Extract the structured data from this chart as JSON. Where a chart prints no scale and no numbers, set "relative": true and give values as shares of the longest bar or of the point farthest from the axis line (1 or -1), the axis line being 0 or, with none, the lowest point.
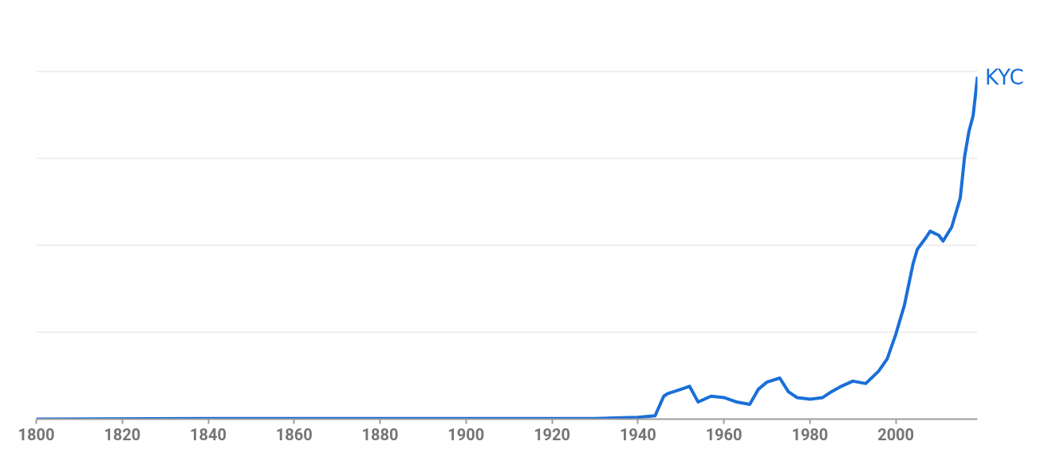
{
  "chart_data": {
    "type": "line",
    "relative": true,
    "grid": "y",
    "xlim": [
      1800,
      2019
    ],
    "xticks": [
      1800,
      1820,
      1840,
      1860,
      1880,
      1900,
      1920,
      1940,
      1960,
      1980,
      2000
    ],
    "series": [
      {
        "name": "KYC",
        "color": "#1a6fd8",
        "x": [
          1800,
          1850,
          1900,
          1930,
          1940,
          1944,
          1946,
          1947,
          1950,
          1952,
          1954,
          1957,
          1960,
          1963,
          1966,
          1968,
          1970,
          1973,
          1975,
          1977,
          1980,
          1983,
          1985,
          1987,
          1990,
          1993,
          1996,
          1998,
          2000,
          2002,
          2004,
          2005,
          2007,
          2008,
          2010,
          2011,
          2013,
          2015,
          2016,
          2017,
          2018,
          2019
        ],
        "values": [
          0,
          0.002,
          0.002,
          0.002,
          0.005,
          0.01,
          0.067,
          0.075,
          0.087,
          0.096,
          0.05,
          0.067,
          0.063,
          0.05,
          0.043,
          0.087,
          0.108,
          0.12,
          0.08,
          0.063,
          0.058,
          0.063,
          0.08,
          0.094,
          0.111,
          0.104,
          0.14,
          0.176,
          0.248,
          0.333,
          0.453,
          0.496,
          0.53,
          0.549,
          0.537,
          0.52,
          0.561,
          0.646,
          0.766,
          0.839,
          0.887,
          1
        ]
      }
    ]
  }
}
